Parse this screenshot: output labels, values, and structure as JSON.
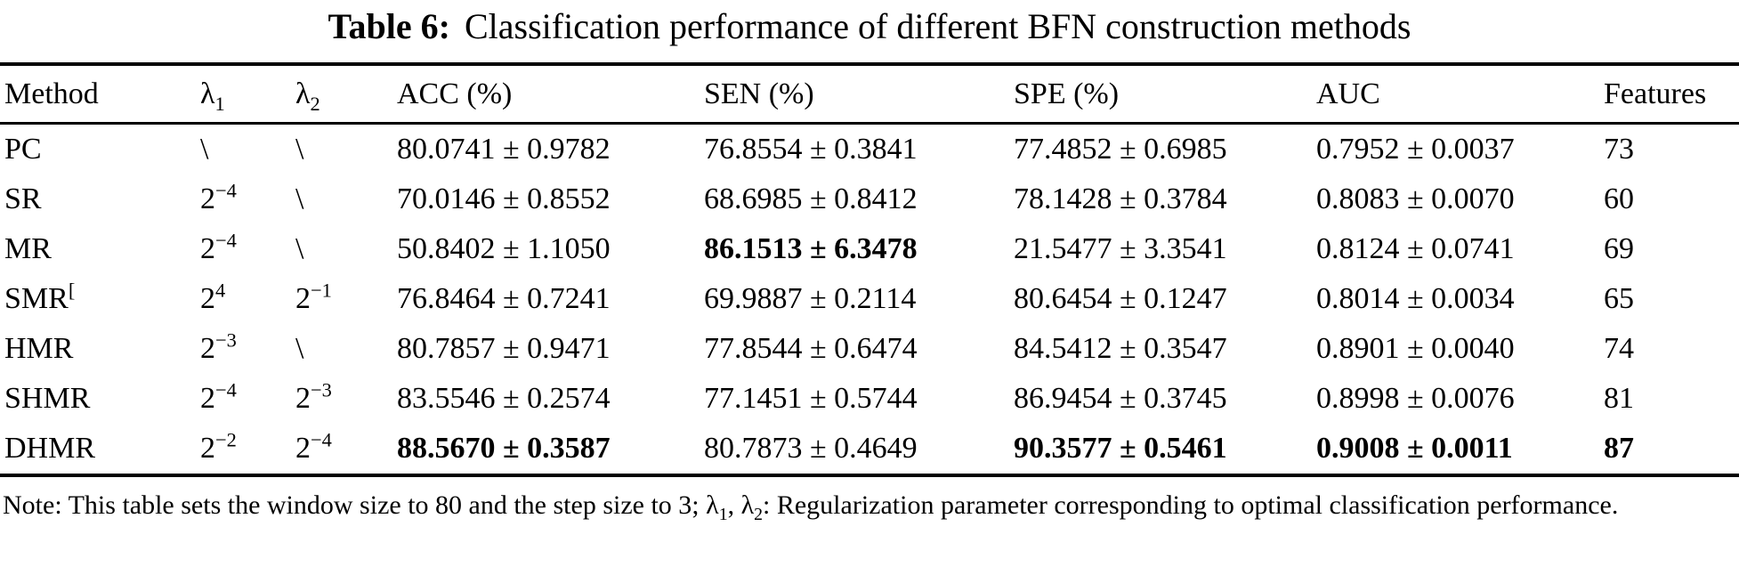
{
  "title": {
    "label": "Table 6:",
    "text": "Classification performance of different BFN construction methods"
  },
  "table": {
    "columns": [
      {
        "key": "method",
        "label": "Method"
      },
      {
        "key": "lambda1",
        "label": "λ_{1}"
      },
      {
        "key": "lambda2",
        "label": "λ_{2}"
      },
      {
        "key": "acc",
        "label": "ACC (%)"
      },
      {
        "key": "sen",
        "label": "SEN (%)"
      },
      {
        "key": "spe",
        "label": "SPE (%)"
      },
      {
        "key": "auc",
        "label": "AUC"
      },
      {
        "key": "features",
        "label": "Features"
      }
    ],
    "rows": [
      {
        "cells": {
          "method": "PC",
          "lambda1": "\\",
          "lambda2": "\\",
          "acc": "80.0741 ± 0.9782",
          "sen": "76.8554 ± 0.3841",
          "spe": "77.4852 ± 0.6985",
          "auc": "0.7952 ± 0.0037",
          "features": "73"
        },
        "bold": []
      },
      {
        "cells": {
          "method": "SR",
          "lambda1": "2^{−4}",
          "lambda2": "\\",
          "acc": "70.0146 ± 0.8552",
          "sen": "68.6985 ± 0.8412",
          "spe": "78.1428 ± 0.3784",
          "auc": "0.8083 ± 0.0070",
          "features": "60"
        },
        "bold": []
      },
      {
        "cells": {
          "method": "MR",
          "lambda1": "2^{−4}",
          "lambda2": "\\",
          "acc": "50.8402 ± 1.1050",
          "sen": "86.1513 ± 6.3478",
          "spe": "21.5477 ± 3.3541",
          "auc": "0.8124 ± 0.0741",
          "features": "69"
        },
        "bold": [
          "sen"
        ]
      },
      {
        "cells": {
          "method": "SMR^{[}",
          "lambda1": "2^{4}",
          "lambda2": "2^{−1}",
          "acc": "76.8464 ± 0.7241",
          "sen": "69.9887 ± 0.2114",
          "spe": "80.6454 ± 0.1247",
          "auc": "0.8014 ± 0.0034",
          "features": "65"
        },
        "bold": []
      },
      {
        "cells": {
          "method": "HMR",
          "lambda1": "2^{−3}",
          "lambda2": "\\",
          "acc": "80.7857 ± 0.9471",
          "sen": "77.8544 ± 0.6474",
          "spe": "84.5412 ± 0.3547",
          "auc": "0.8901 ± 0.0040",
          "features": "74"
        },
        "bold": []
      },
      {
        "cells": {
          "method": "SHMR",
          "lambda1": "2^{−4}",
          "lambda2": "2^{−3}",
          "acc": "83.5546 ± 0.2574",
          "sen": "77.1451 ± 0.5744",
          "spe": "86.9454 ± 0.3745",
          "auc": "0.8998 ± 0.0076",
          "features": "81"
        },
        "bold": []
      },
      {
        "cells": {
          "method": "DHMR",
          "lambda1": "2^{−2}",
          "lambda2": "2^{−4}",
          "acc": "88.5670 ± 0.3587",
          "sen": "80.7873 ± 0.4649",
          "spe": "90.3577 ± 0.5461",
          "auc": "0.9008 ± 0.0011",
          "features": "87"
        },
        "bold": [
          "acc",
          "spe",
          "auc",
          "features"
        ]
      }
    ]
  },
  "note": "Note: This table sets the window size to 80 and the step size to 3; λ_{1}, λ_{2}: Regularization parameter corresponding to optimal classification performance."
}
